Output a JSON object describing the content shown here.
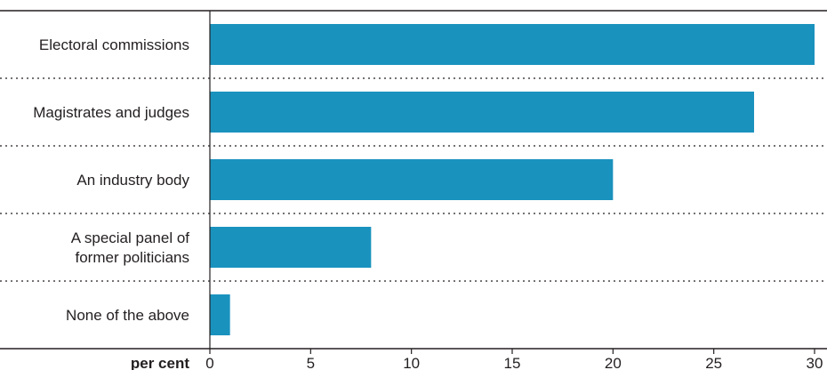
{
  "chart_data": {
    "type": "bar",
    "orientation": "horizontal",
    "categories": [
      [
        "Electoral commissions"
      ],
      [
        "Magistrates and judges"
      ],
      [
        "An industry body"
      ],
      [
        "A special panel of",
        "former politicians"
      ],
      [
        "None of the above"
      ]
    ],
    "values": [
      30,
      27,
      20,
      8,
      1
    ],
    "xlabel": "per cent",
    "xlim": [
      0,
      30
    ],
    "ticks": [
      "0",
      "5",
      "10",
      "15",
      "20",
      "25",
      "30"
    ],
    "bar_color": "#1a92be",
    "grid": false,
    "separators": "dotted"
  }
}
